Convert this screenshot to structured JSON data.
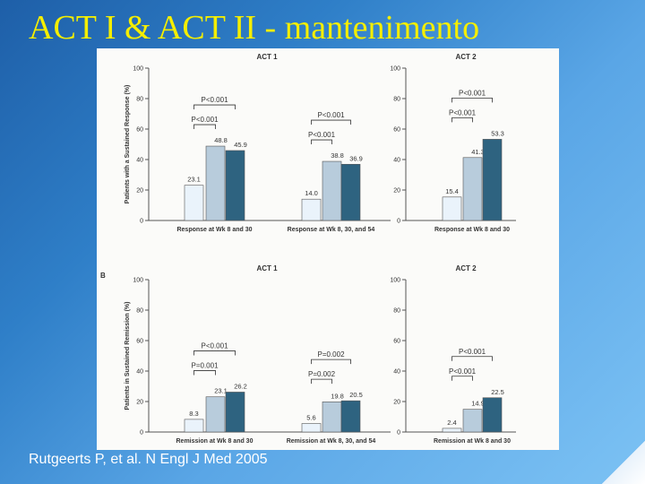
{
  "slide": {
    "title": "ACT I & ACT II - mantenimento",
    "citation": "Rutgeerts P, et al. N Engl J Med 2005"
  },
  "colors": {
    "placebo": "#eaf3fb",
    "dose_low": "#b8ccdc",
    "dose_high": "#2e6380",
    "title": "#f4ee00"
  },
  "chart_data": [
    {
      "type": "bar",
      "panel_letter": "",
      "title": "ACT 1",
      "ylabel": "Patients with a Sustained Response (%)",
      "ylim": [
        0,
        100
      ],
      "yticks": [
        0,
        20,
        40,
        60,
        80,
        100
      ],
      "categories": [
        "Response at Wk 8 and 30",
        "Response at Wk 8, 30, and 54"
      ],
      "values": [
        [
          23.1,
          48.8,
          45.9
        ],
        [
          14.0,
          38.8,
          36.9
        ]
      ],
      "value_labels": [
        [
          "23.1",
          "48.8",
          "45.9"
        ],
        [
          "14.0",
          "38.8",
          "36.9"
        ]
      ],
      "comparisons": [
        [
          "P<0.001",
          "P<0.001"
        ],
        [
          "P<0.001",
          "P<0.001"
        ]
      ]
    },
    {
      "type": "bar",
      "panel_letter": "",
      "title": "ACT 2",
      "ylabel": "",
      "ylim": [
        0,
        100
      ],
      "yticks": [
        0,
        20,
        40,
        60,
        80,
        100
      ],
      "categories": [
        "Response at Wk 8 and 30"
      ],
      "values": [
        [
          15.4,
          41.3,
          53.3
        ]
      ],
      "value_labels": [
        [
          "15.4",
          "41.3",
          "53.3"
        ]
      ],
      "comparisons": [
        [
          "P<0.001",
          "P<0.001"
        ]
      ]
    },
    {
      "type": "bar",
      "panel_letter": "B",
      "title": "ACT 1",
      "ylabel": "Patients in Sustained Remission (%)",
      "ylim": [
        0,
        100
      ],
      "yticks": [
        0,
        20,
        40,
        60,
        80,
        100
      ],
      "categories": [
        "Remission at Wk 8 and 30",
        "Remission at Wk 8, 30, and 54"
      ],
      "values": [
        [
          8.3,
          23.1,
          26.2
        ],
        [
          5.6,
          19.8,
          20.5
        ]
      ],
      "value_labels": [
        [
          "8.3",
          "23.1",
          "26.2"
        ],
        [
          "5.6",
          "19.8",
          "20.5"
        ]
      ],
      "comparisons": [
        [
          "P=0.001",
          "P<0.001"
        ],
        [
          "P=0.002",
          "P=0.002"
        ]
      ]
    },
    {
      "type": "bar",
      "panel_letter": "",
      "title": "ACT 2",
      "ylabel": "",
      "ylim": [
        0,
        100
      ],
      "yticks": [
        0,
        20,
        40,
        60,
        80,
        100
      ],
      "categories": [
        "Remission at Wk 8 and 30"
      ],
      "values": [
        [
          2.4,
          14.9,
          22.5
        ]
      ],
      "value_labels": [
        [
          "2.4",
          "14.9",
          "22.5"
        ]
      ],
      "comparisons": [
        [
          "P<0.001",
          "P<0.001"
        ]
      ]
    }
  ]
}
